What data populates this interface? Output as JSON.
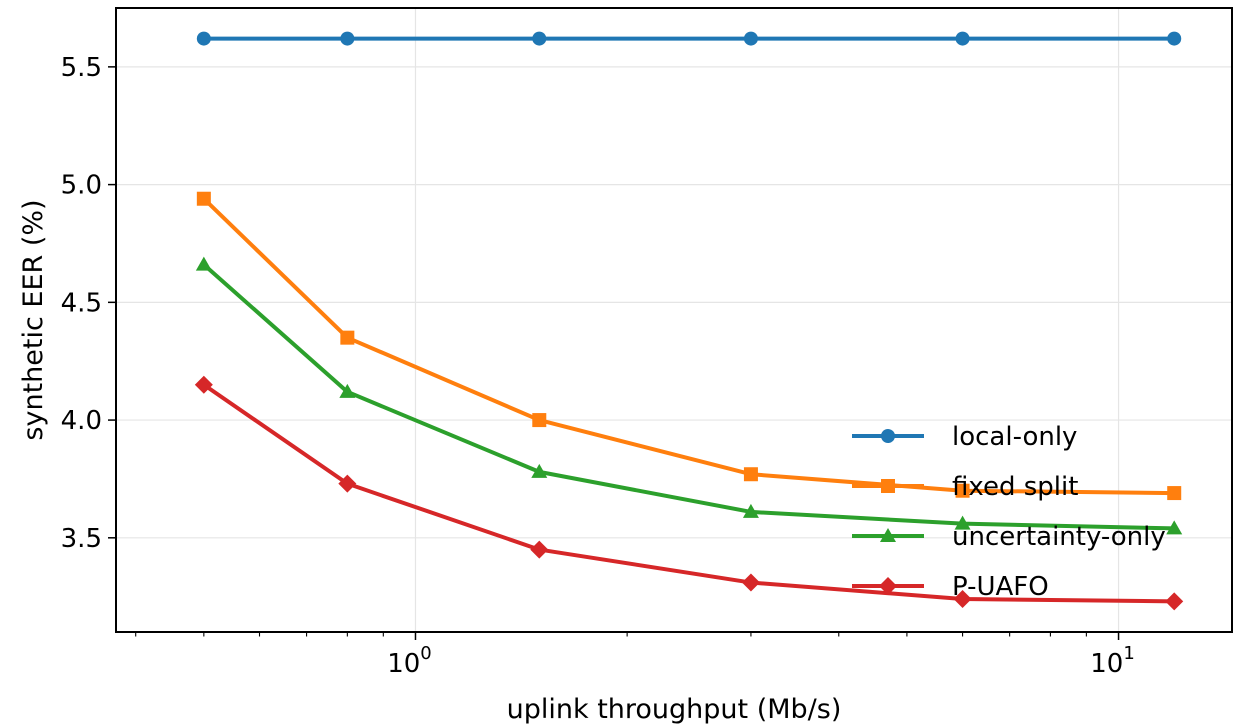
{
  "chart_data": {
    "type": "line",
    "xlabel": "uplink throughput (Mb/s)",
    "ylabel": "synthetic EER (%)",
    "x_scale": "log",
    "xlim": [
      0.375,
      14.5
    ],
    "ylim": [
      3.1,
      5.75
    ],
    "grid": true,
    "legend_position": "lower-right",
    "x_ticks": [
      {
        "value": 1,
        "base": "10",
        "exp": "0"
      },
      {
        "value": 10,
        "base": "10",
        "exp": "1"
      }
    ],
    "y_ticks": [
      {
        "value": 3.5,
        "label": "3.5"
      },
      {
        "value": 4.0,
        "label": "4.0"
      },
      {
        "value": 4.5,
        "label": "4.5"
      },
      {
        "value": 5.0,
        "label": "5.0"
      },
      {
        "value": 5.5,
        "label": "5.5"
      }
    ],
    "x": [
      0.5,
      0.8,
      1.5,
      3.0,
      6.0,
      12.0
    ],
    "series": [
      {
        "name": "local-only",
        "color": "#1f77b4",
        "marker": "circle",
        "values": [
          5.62,
          5.62,
          5.62,
          5.62,
          5.62,
          5.62
        ]
      },
      {
        "name": "fixed split",
        "color": "#ff7f0e",
        "marker": "square",
        "values": [
          4.94,
          4.35,
          4.0,
          3.77,
          3.7,
          3.69
        ]
      },
      {
        "name": "uncertainty-only",
        "color": "#2ca02c",
        "marker": "triangle",
        "values": [
          4.66,
          4.12,
          3.78,
          3.61,
          3.56,
          3.54
        ]
      },
      {
        "name": "P-UAFO",
        "color": "#d62728",
        "marker": "diamond",
        "values": [
          4.15,
          3.73,
          3.45,
          3.31,
          3.24,
          3.23
        ]
      }
    ]
  }
}
